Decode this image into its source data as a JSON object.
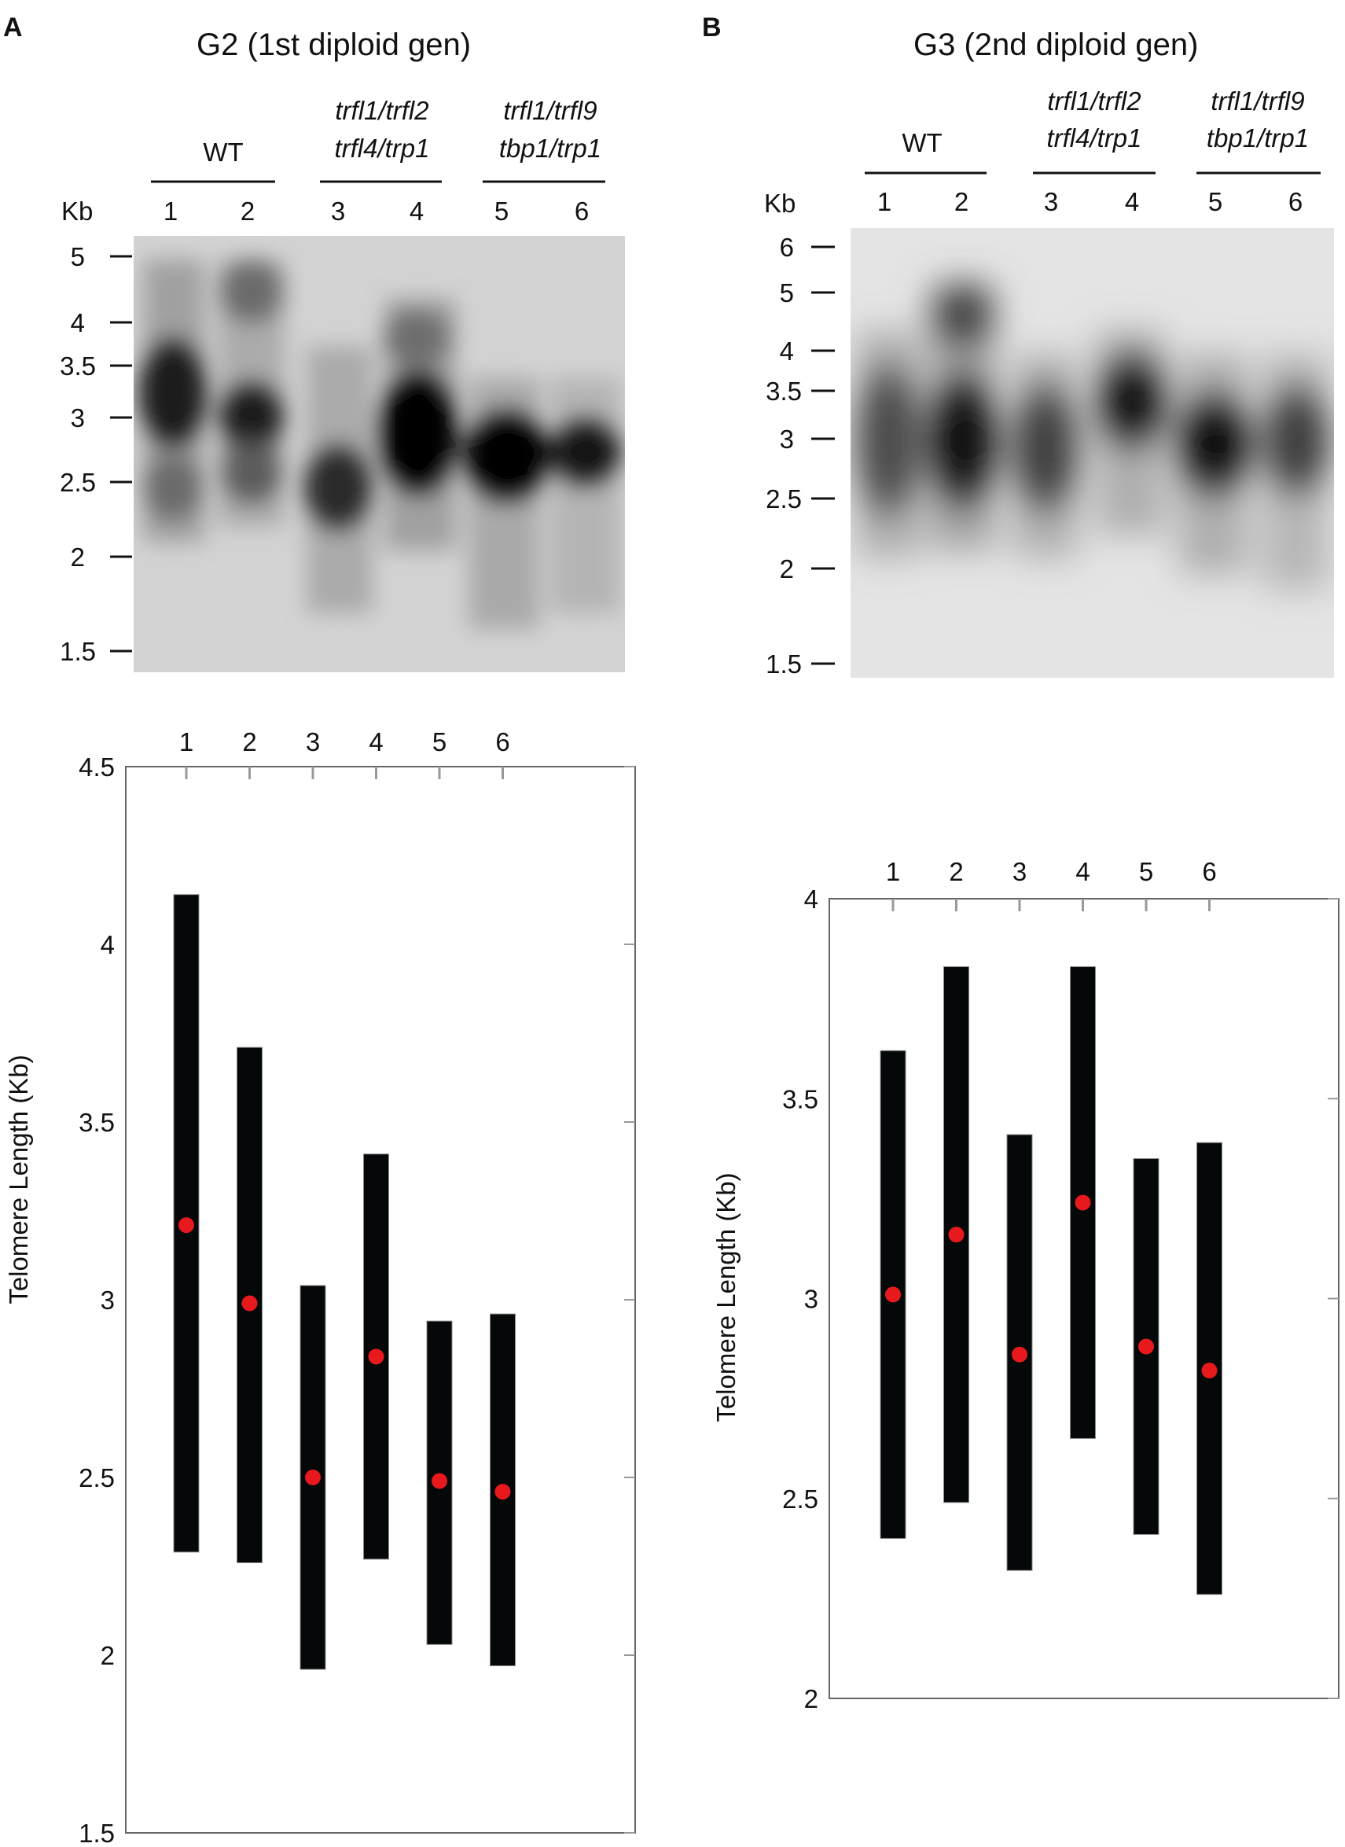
{
  "panels": [
    {
      "letter": "A",
      "title": "G2 (1st diploid gen)",
      "kb_label": "Kb",
      "groups": [
        {
          "lines": [
            "WT"
          ],
          "lanes": [
            "1",
            "2"
          ]
        },
        {
          "lines": [
            "trfl1/trfl2",
            "trfl4/trp1"
          ],
          "lanes": [
            "3",
            "4"
          ]
        },
        {
          "lines": [
            "trfl1/trfl9",
            "tbp1/trp1"
          ],
          "lanes": [
            "5",
            "6"
          ]
        }
      ],
      "markers": [
        "5",
        "4",
        "3.5",
        "3",
        "2.5",
        "2",
        "1.5"
      ]
    },
    {
      "letter": "B",
      "title": "G3 (2nd diploid gen)",
      "kb_label": "Kb",
      "groups": [
        {
          "lines": [
            "WT"
          ],
          "lanes": [
            "1",
            "2"
          ]
        },
        {
          "lines": [
            "trfl1/trfl2",
            "trfl4/trp1"
          ],
          "lanes": [
            "3",
            "4"
          ]
        },
        {
          "lines": [
            "trfl1/trfl9",
            "tbp1/trp1"
          ],
          "lanes": [
            "5",
            "6"
          ]
        }
      ],
      "markers": [
        "6",
        "5",
        "4",
        "3.5",
        "3",
        "2.5",
        "2",
        "1.5"
      ]
    }
  ],
  "colors": {
    "bar": "#040808",
    "point": "#e8191c",
    "axis": "#555555",
    "tick": "#999999"
  },
  "chart_data": [
    {
      "type": "range-bar",
      "panel": "A",
      "ylabel": "Telomere Length (Kb)",
      "ylim": [
        1.5,
        4.5
      ],
      "yticks": [
        "1.5",
        "2",
        "2.5",
        "3",
        "3.5",
        "4",
        "4.5"
      ],
      "categories": [
        "1",
        "2",
        "3",
        "4",
        "5",
        "6"
      ],
      "low": [
        2.29,
        2.26,
        1.96,
        2.27,
        2.03,
        1.97
      ],
      "high": [
        4.14,
        3.71,
        3.04,
        3.41,
        2.94,
        2.96
      ],
      "mean": [
        3.21,
        2.99,
        2.5,
        2.84,
        2.49,
        2.46
      ]
    },
    {
      "type": "range-bar",
      "panel": "B",
      "ylabel": "Telomere Length (Kb)",
      "ylim": [
        2,
        4
      ],
      "yticks": [
        "2",
        "2.5",
        "3",
        "3.5",
        "4"
      ],
      "categories": [
        "1",
        "2",
        "3",
        "4",
        "5",
        "6"
      ],
      "low": [
        2.4,
        2.49,
        2.32,
        2.65,
        2.41,
        2.26
      ],
      "high": [
        3.62,
        3.83,
        3.41,
        3.83,
        3.35,
        3.39
      ],
      "mean": [
        3.01,
        3.16,
        2.86,
        3.24,
        2.88,
        2.82
      ]
    }
  ]
}
